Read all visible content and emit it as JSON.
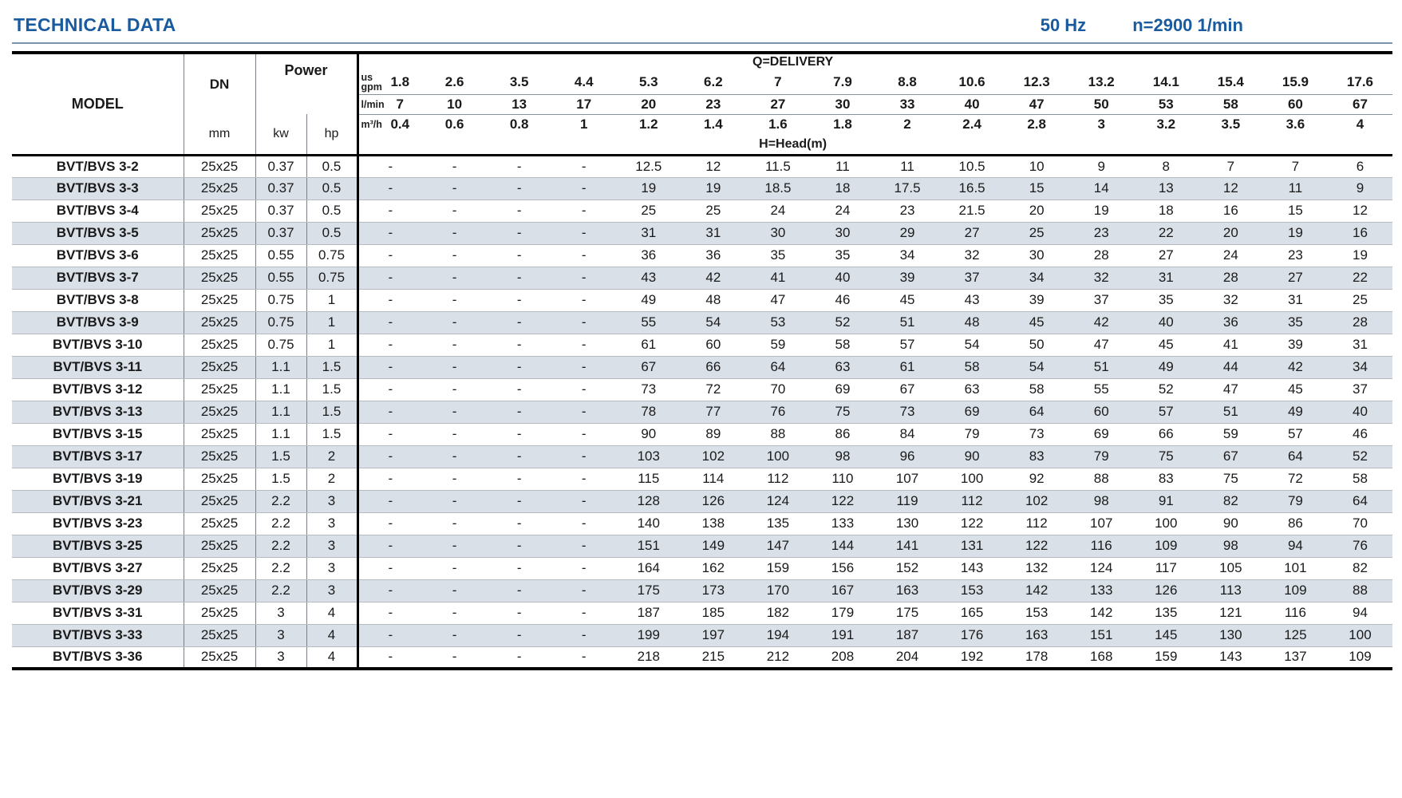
{
  "header": {
    "title": "TECHNICAL DATA",
    "frequency": "50 Hz",
    "speed": "n=2900 1/min"
  },
  "table": {
    "headers": {
      "model": "MODEL",
      "dn": "DN",
      "dn_unit": "mm",
      "power": "Power",
      "kw": "kw",
      "hp": "hp",
      "delivery": "Q=DELIVERY",
      "head": "H=Head(m)",
      "unit_gpm": "us gpm",
      "unit_lmin": "l/min",
      "unit_m3h": "m³/h"
    },
    "gpm": [
      "1.8",
      "2.6",
      "3.5",
      "4.4",
      "5.3",
      "6.2",
      "7",
      "7.9",
      "8.8",
      "10.6",
      "12.3",
      "13.2",
      "14.1",
      "15.4",
      "15.9",
      "17.6"
    ],
    "lmin": [
      "7",
      "10",
      "13",
      "17",
      "20",
      "23",
      "27",
      "30",
      "33",
      "40",
      "47",
      "50",
      "53",
      "58",
      "60",
      "67"
    ],
    "m3h": [
      "0.4",
      "0.6",
      "0.8",
      "1",
      "1.2",
      "1.4",
      "1.6",
      "1.8",
      "2",
      "2.4",
      "2.8",
      "3",
      "3.2",
      "3.5",
      "3.6",
      "4"
    ],
    "rows": [
      {
        "model": "BVT/BVS 3-2",
        "dn": "25x25",
        "kw": "0.37",
        "hp": "0.5",
        "head": [
          "-",
          "-",
          "-",
          "-",
          "12.5",
          "12",
          "11.5",
          "11",
          "11",
          "10.5",
          "10",
          "9",
          "8",
          "7",
          "7",
          "6"
        ]
      },
      {
        "model": "BVT/BVS 3-3",
        "dn": "25x25",
        "kw": "0.37",
        "hp": "0.5",
        "head": [
          "-",
          "-",
          "-",
          "-",
          "19",
          "19",
          "18.5",
          "18",
          "17.5",
          "16.5",
          "15",
          "14",
          "13",
          "12",
          "11",
          "9"
        ]
      },
      {
        "model": "BVT/BVS 3-4",
        "dn": "25x25",
        "kw": "0.37",
        "hp": "0.5",
        "head": [
          "-",
          "-",
          "-",
          "-",
          "25",
          "25",
          "24",
          "24",
          "23",
          "21.5",
          "20",
          "19",
          "18",
          "16",
          "15",
          "12"
        ]
      },
      {
        "model": "BVT/BVS 3-5",
        "dn": "25x25",
        "kw": "0.37",
        "hp": "0.5",
        "head": [
          "-",
          "-",
          "-",
          "-",
          "31",
          "31",
          "30",
          "30",
          "29",
          "27",
          "25",
          "23",
          "22",
          "20",
          "19",
          "16"
        ]
      },
      {
        "model": "BVT/BVS 3-6",
        "dn": "25x25",
        "kw": "0.55",
        "hp": "0.75",
        "head": [
          "-",
          "-",
          "-",
          "-",
          "36",
          "36",
          "35",
          "35",
          "34",
          "32",
          "30",
          "28",
          "27",
          "24",
          "23",
          "19"
        ]
      },
      {
        "model": "BVT/BVS 3-7",
        "dn": "25x25",
        "kw": "0.55",
        "hp": "0.75",
        "head": [
          "-",
          "-",
          "-",
          "-",
          "43",
          "42",
          "41",
          "40",
          "39",
          "37",
          "34",
          "32",
          "31",
          "28",
          "27",
          "22"
        ]
      },
      {
        "model": "BVT/BVS 3-8",
        "dn": "25x25",
        "kw": "0.75",
        "hp": "1",
        "head": [
          "-",
          "-",
          "-",
          "-",
          "49",
          "48",
          "47",
          "46",
          "45",
          "43",
          "39",
          "37",
          "35",
          "32",
          "31",
          "25"
        ]
      },
      {
        "model": "BVT/BVS 3-9",
        "dn": "25x25",
        "kw": "0.75",
        "hp": "1",
        "head": [
          "-",
          "-",
          "-",
          "-",
          "55",
          "54",
          "53",
          "52",
          "51",
          "48",
          "45",
          "42",
          "40",
          "36",
          "35",
          "28"
        ]
      },
      {
        "model": "BVT/BVS 3-10",
        "dn": "25x25",
        "kw": "0.75",
        "hp": "1",
        "head": [
          "-",
          "-",
          "-",
          "-",
          "61",
          "60",
          "59",
          "58",
          "57",
          "54",
          "50",
          "47",
          "45",
          "41",
          "39",
          "31"
        ]
      },
      {
        "model": "BVT/BVS 3-11",
        "dn": "25x25",
        "kw": "1.1",
        "hp": "1.5",
        "head": [
          "-",
          "-",
          "-",
          "-",
          "67",
          "66",
          "64",
          "63",
          "61",
          "58",
          "54",
          "51",
          "49",
          "44",
          "42",
          "34"
        ]
      },
      {
        "model": "BVT/BVS 3-12",
        "dn": "25x25",
        "kw": "1.1",
        "hp": "1.5",
        "head": [
          "-",
          "-",
          "-",
          "-",
          "73",
          "72",
          "70",
          "69",
          "67",
          "63",
          "58",
          "55",
          "52",
          "47",
          "45",
          "37"
        ]
      },
      {
        "model": "BVT/BVS 3-13",
        "dn": "25x25",
        "kw": "1.1",
        "hp": "1.5",
        "head": [
          "-",
          "-",
          "-",
          "-",
          "78",
          "77",
          "76",
          "75",
          "73",
          "69",
          "64",
          "60",
          "57",
          "51",
          "49",
          "40"
        ]
      },
      {
        "model": "BVT/BVS 3-15",
        "dn": "25x25",
        "kw": "1.1",
        "hp": "1.5",
        "head": [
          "-",
          "-",
          "-",
          "-",
          "90",
          "89",
          "88",
          "86",
          "84",
          "79",
          "73",
          "69",
          "66",
          "59",
          "57",
          "46"
        ]
      },
      {
        "model": "BVT/BVS 3-17",
        "dn": "25x25",
        "kw": "1.5",
        "hp": "2",
        "head": [
          "-",
          "-",
          "-",
          "-",
          "103",
          "102",
          "100",
          "98",
          "96",
          "90",
          "83",
          "79",
          "75",
          "67",
          "64",
          "52"
        ]
      },
      {
        "model": "BVT/BVS 3-19",
        "dn": "25x25",
        "kw": "1.5",
        "hp": "2",
        "head": [
          "-",
          "-",
          "-",
          "-",
          "115",
          "114",
          "112",
          "110",
          "107",
          "100",
          "92",
          "88",
          "83",
          "75",
          "72",
          "58"
        ]
      },
      {
        "model": "BVT/BVS 3-21",
        "dn": "25x25",
        "kw": "2.2",
        "hp": "3",
        "head": [
          "-",
          "-",
          "-",
          "-",
          "128",
          "126",
          "124",
          "122",
          "119",
          "112",
          "102",
          "98",
          "91",
          "82",
          "79",
          "64"
        ]
      },
      {
        "model": "BVT/BVS 3-23",
        "dn": "25x25",
        "kw": "2.2",
        "hp": "3",
        "head": [
          "-",
          "-",
          "-",
          "-",
          "140",
          "138",
          "135",
          "133",
          "130",
          "122",
          "112",
          "107",
          "100",
          "90",
          "86",
          "70"
        ]
      },
      {
        "model": "BVT/BVS 3-25",
        "dn": "25x25",
        "kw": "2.2",
        "hp": "3",
        "head": [
          "-",
          "-",
          "-",
          "-",
          "151",
          "149",
          "147",
          "144",
          "141",
          "131",
          "122",
          "116",
          "109",
          "98",
          "94",
          "76"
        ]
      },
      {
        "model": "BVT/BVS 3-27",
        "dn": "25x25",
        "kw": "2.2",
        "hp": "3",
        "head": [
          "-",
          "-",
          "-",
          "-",
          "164",
          "162",
          "159",
          "156",
          "152",
          "143",
          "132",
          "124",
          "117",
          "105",
          "101",
          "82"
        ]
      },
      {
        "model": "BVT/BVS 3-29",
        "dn": "25x25",
        "kw": "2.2",
        "hp": "3",
        "head": [
          "-",
          "-",
          "-",
          "-",
          "175",
          "173",
          "170",
          "167",
          "163",
          "153",
          "142",
          "133",
          "126",
          "113",
          "109",
          "88"
        ]
      },
      {
        "model": "BVT/BVS 3-31",
        "dn": "25x25",
        "kw": "3",
        "hp": "4",
        "head": [
          "-",
          "-",
          "-",
          "-",
          "187",
          "185",
          "182",
          "179",
          "175",
          "165",
          "153",
          "142",
          "135",
          "121",
          "116",
          "94"
        ]
      },
      {
        "model": "BVT/BVS 3-33",
        "dn": "25x25",
        "kw": "3",
        "hp": "4",
        "head": [
          "-",
          "-",
          "-",
          "-",
          "199",
          "197",
          "194",
          "191",
          "187",
          "176",
          "163",
          "151",
          "145",
          "130",
          "125",
          "100"
        ]
      },
      {
        "model": "BVT/BVS 3-36",
        "dn": "25x25",
        "kw": "3",
        "hp": "4",
        "head": [
          "-",
          "-",
          "-",
          "-",
          "218",
          "215",
          "212",
          "208",
          "204",
          "192",
          "178",
          "168",
          "159",
          "143",
          "137",
          "109"
        ]
      }
    ]
  }
}
